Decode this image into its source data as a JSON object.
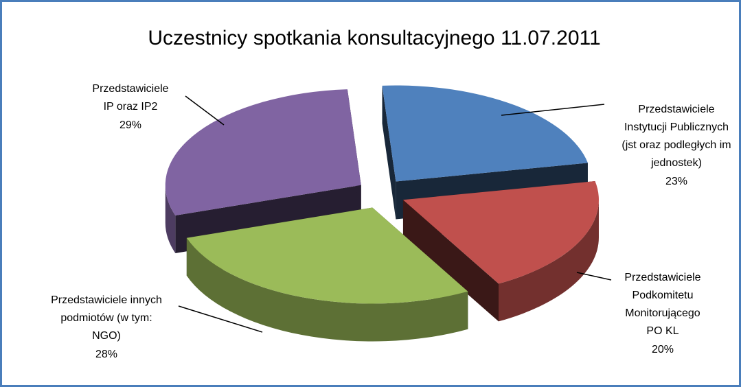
{
  "chart_data": {
    "type": "pie",
    "title": "Uczestnicy spotkania konsultacyjnego 11.07.2011",
    "categories": [
      [
        "Przedstawiciele",
        "Instytucji Publicznych",
        "(jst oraz podległych im",
        "jednostek)"
      ],
      [
        "Przedstawiciele",
        "Podkomitetu",
        "Monitorującego",
        "PO KL"
      ],
      [
        "Przedstawiciele innych",
        "podmiotów (w tym:",
        "NGO)"
      ],
      [
        "Przedstawiciele",
        "IP oraz IP2"
      ]
    ],
    "values": [
      23,
      20,
      28,
      29
    ],
    "value_labels": [
      "23%",
      "20%",
      "28%",
      "29%"
    ],
    "colors": [
      "#4f81bd",
      "#c0504d",
      "#9bbb59",
      "#8064a2"
    ]
  }
}
